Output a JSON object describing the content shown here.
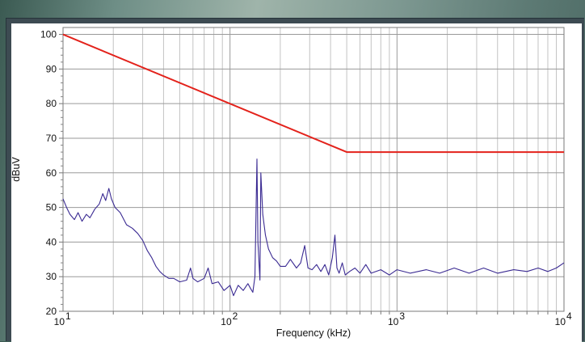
{
  "chart_data": {
    "type": "line",
    "title": "",
    "xlabel": "Frequency (kHz)",
    "ylabel": "dBuV",
    "x_scale": "log",
    "xlim": [
      10,
      10000
    ],
    "ylim": [
      20,
      102
    ],
    "grid": true,
    "x_ticks": [
      {
        "base": "10",
        "exp": "1"
      },
      {
        "base": "10",
        "exp": "2"
      },
      {
        "base": "10",
        "exp": "3"
      },
      {
        "base": "10",
        "exp": "4"
      }
    ],
    "y_ticks": [
      "20",
      "30",
      "40",
      "50",
      "60",
      "70",
      "80",
      "90",
      "100"
    ],
    "series": [
      {
        "color": "#e3221b",
        "points": [
          [
            10,
            100
          ],
          [
            500,
            66
          ],
          [
            10000,
            66
          ]
        ]
      },
      {
        "color": "#3a2a92",
        "points": [
          [
            10,
            52.5
          ],
          [
            10.5,
            50
          ],
          [
            11,
            48
          ],
          [
            11.7,
            46.5
          ],
          [
            12.3,
            48.5
          ],
          [
            13,
            46
          ],
          [
            13.8,
            48
          ],
          [
            14.5,
            47
          ],
          [
            15.5,
            49.5
          ],
          [
            16.5,
            51
          ],
          [
            17.3,
            54
          ],
          [
            18,
            52
          ],
          [
            18.8,
            55.5
          ],
          [
            19.5,
            52.5
          ],
          [
            20.5,
            50
          ],
          [
            22,
            48.5
          ],
          [
            24,
            45
          ],
          [
            26,
            44
          ],
          [
            28,
            42.5
          ],
          [
            30,
            40.5
          ],
          [
            32,
            37.5
          ],
          [
            34,
            35.5
          ],
          [
            36,
            33
          ],
          [
            38,
            31.5
          ],
          [
            40,
            30.5
          ],
          [
            43,
            29.5
          ],
          [
            46,
            29.5
          ],
          [
            50,
            28.5
          ],
          [
            55,
            29
          ],
          [
            58,
            32.5
          ],
          [
            60,
            29.5
          ],
          [
            64,
            28.5
          ],
          [
            70,
            29.5
          ],
          [
            74,
            32.5
          ],
          [
            78,
            28
          ],
          [
            85,
            28.5
          ],
          [
            92,
            26
          ],
          [
            100,
            27.5
          ],
          [
            105,
            24.5
          ],
          [
            112,
            27.5
          ],
          [
            120,
            26
          ],
          [
            128,
            28
          ],
          [
            133,
            26.5
          ],
          [
            137,
            25.5
          ],
          [
            141,
            30
          ],
          [
            145,
            64
          ],
          [
            147,
            40
          ],
          [
            151,
            29
          ],
          [
            153,
            60
          ],
          [
            157,
            48
          ],
          [
            163,
            42
          ],
          [
            170,
            38
          ],
          [
            180,
            35.5
          ],
          [
            190,
            34.5
          ],
          [
            200,
            33
          ],
          [
            215,
            33
          ],
          [
            230,
            35
          ],
          [
            250,
            32.5
          ],
          [
            265,
            34
          ],
          [
            280,
            39
          ],
          [
            293,
            32.5
          ],
          [
            310,
            32
          ],
          [
            330,
            33.5
          ],
          [
            350,
            31.5
          ],
          [
            370,
            33.5
          ],
          [
            390,
            30.5
          ],
          [
            410,
            35.5
          ],
          [
            425,
            42
          ],
          [
            437,
            32.5
          ],
          [
            450,
            31
          ],
          [
            470,
            34
          ],
          [
            490,
            30.5
          ],
          [
            520,
            31.5
          ],
          [
            560,
            32.5
          ],
          [
            600,
            31
          ],
          [
            650,
            33.5
          ],
          [
            700,
            31
          ],
          [
            800,
            32
          ],
          [
            900,
            30.5
          ],
          [
            1000,
            32
          ],
          [
            1200,
            31
          ],
          [
            1500,
            32
          ],
          [
            1800,
            31
          ],
          [
            2200,
            32.5
          ],
          [
            2700,
            31
          ],
          [
            3300,
            32.5
          ],
          [
            4000,
            31
          ],
          [
            5000,
            32
          ],
          [
            6000,
            31.5
          ],
          [
            7000,
            32.5
          ],
          [
            8000,
            31.5
          ],
          [
            9000,
            32.5
          ],
          [
            10000,
            34
          ]
        ]
      }
    ]
  }
}
